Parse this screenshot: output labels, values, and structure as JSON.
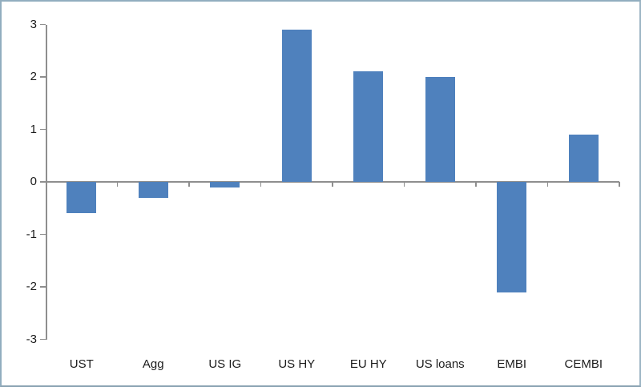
{
  "chart_data": {
    "type": "bar",
    "title": "",
    "xlabel": "",
    "ylabel": "",
    "categories": [
      "UST",
      "Agg",
      "US IG",
      "US HY",
      "EU HY",
      "US loans",
      "EMBI",
      "CEMBI"
    ],
    "values": [
      -0.6,
      -0.3,
      -0.1,
      2.9,
      2.1,
      2.0,
      -2.1,
      0.9
    ],
    "ylim": [
      -3,
      3
    ],
    "yticks": [
      3,
      2,
      1,
      0,
      -1,
      -2,
      -3
    ],
    "grid": false,
    "legend": false,
    "colors": {
      "bar": "#4f81bd",
      "axis": "#8e8e8e",
      "text": "#1c1c1c",
      "frame_border": "#92aebf",
      "background": "#ffffff"
    }
  }
}
